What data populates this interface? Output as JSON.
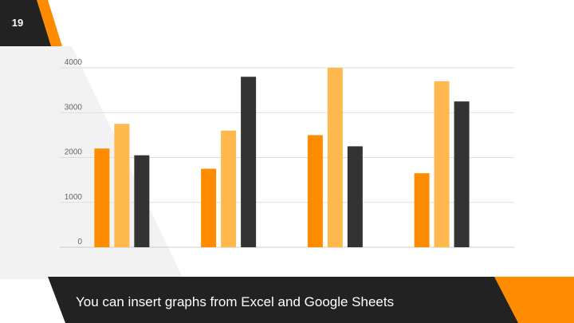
{
  "slide": {
    "page_number": "19",
    "caption": "You can insert graphs from Excel and Google Sheets"
  },
  "colors": {
    "dark": "#222222",
    "orange": "#ff8c00",
    "light_orange": "#ffb84d",
    "charcoal": "#333333",
    "light_gray": "#f2f2f2",
    "grid": "#dddddd"
  },
  "chart_data": {
    "type": "bar",
    "categories": [
      "",
      "",
      "",
      ""
    ],
    "series": [
      {
        "values": [
          2200,
          1750,
          2500,
          1650
        ],
        "color": "#ff8c00"
      },
      {
        "values": [
          2750,
          2600,
          4000,
          3700
        ],
        "color": "#ffb84d"
      },
      {
        "values": [
          2050,
          3800,
          2250,
          3250
        ],
        "color": "#333333"
      }
    ],
    "yticks": [
      0,
      1000,
      2000,
      3000,
      4000
    ],
    "ylim": [
      0,
      4000
    ],
    "grid": true,
    "legend": "none"
  }
}
